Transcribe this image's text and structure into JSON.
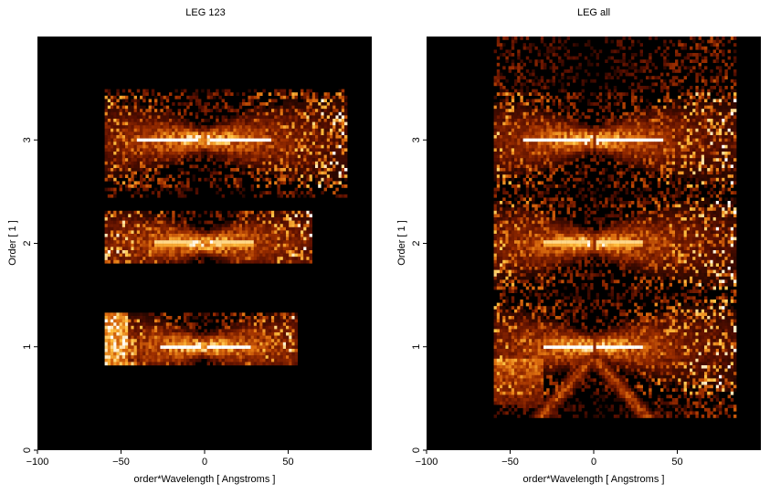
{
  "chart_data": [
    {
      "type": "heatmap",
      "title": "LEG 123",
      "xlabel": "order*Wavelength [ Angstroms ]",
      "ylabel": "Order [ 1 ]",
      "xlim": [
        -100,
        100
      ],
      "ylim": [
        0,
        4
      ],
      "xticks": [
        -100,
        -50,
        0,
        50
      ],
      "xtick_labels": [
        "−100",
        "−50",
        "0",
        "50"
      ],
      "yticks": [
        0,
        1,
        2,
        3
      ],
      "ytick_labels": [
        "0",
        "1",
        "2",
        "3"
      ],
      "colormap": [
        "#000000",
        "#5a0f00",
        "#a03000",
        "#e07010",
        "#ffc040",
        "#ffffff"
      ],
      "background": "#000000",
      "layout_variant": "leg123",
      "bands": [
        {
          "order": 1,
          "y_range": [
            0.83,
            1.33
          ],
          "x_range": [
            -60,
            56
          ],
          "core_x_extent": 27,
          "gap_half_width": 1.5
        },
        {
          "order": 2,
          "y_range": [
            1.8,
            2.3
          ],
          "x_range": [
            -60,
            65
          ],
          "core_x_extent": 30,
          "gap_half_width": 2.5
        },
        {
          "order": 3,
          "y_range": [
            2.45,
            3.48
          ],
          "x_range": [
            -60,
            85
          ],
          "core_x_extent": 40,
          "gap_half_width": 3
        }
      ]
    },
    {
      "type": "heatmap",
      "title": "LEG all",
      "xlabel": "order*Wavelength [ Angstroms ]",
      "ylabel": "Order [ 1 ]",
      "xlim": [
        -100,
        100
      ],
      "ylim": [
        0,
        4
      ],
      "xticks": [
        -100,
        -50,
        0,
        50
      ],
      "xtick_labels": [
        "−100",
        "−50",
        "0",
        "50"
      ],
      "yticks": [
        0,
        1,
        2,
        3
      ],
      "ytick_labels": [
        "0",
        "1",
        "2",
        "3"
      ],
      "colormap": [
        "#000000",
        "#5a0f00",
        "#a03000",
        "#e07010",
        "#ffc040",
        "#ffffff"
      ],
      "background": "#000000",
      "layout_variant": "legall",
      "bands": [
        {
          "order": 1,
          "y_range": [
            0.3,
            1.5
          ],
          "x_range": [
            -60,
            85
          ],
          "core_x_extent": 30,
          "gap_half_width": 1.5
        },
        {
          "order": 2,
          "y_range": [
            1.5,
            2.5
          ],
          "x_range": [
            -60,
            85
          ],
          "core_x_extent": 30,
          "gap_half_width": 1.5
        },
        {
          "order": 3,
          "y_range": [
            2.5,
            4.0
          ],
          "x_range": [
            -60,
            85
          ],
          "core_x_extent": 42,
          "gap_half_width": 2
        }
      ]
    }
  ]
}
